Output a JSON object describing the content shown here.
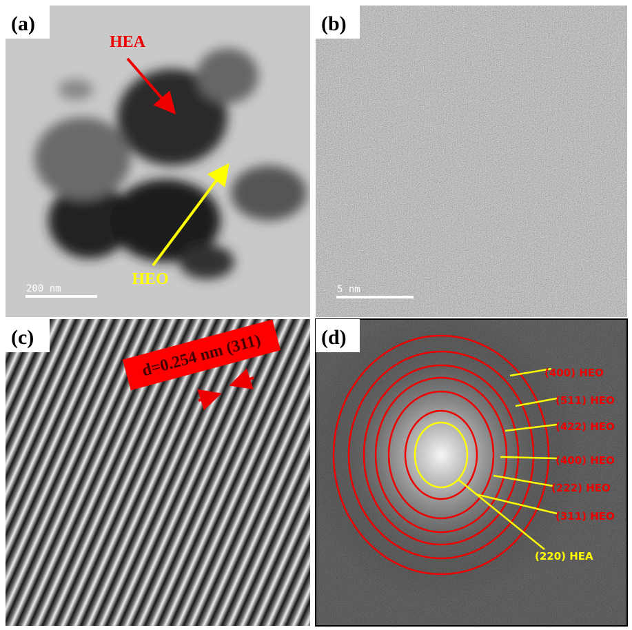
{
  "panels": [
    {
      "label": "(a)",
      "annotations": [
        "HEA",
        "HEO"
      ],
      "scale_bar": "200 nm"
    },
    {
      "label": "(b)",
      "scale_bar": "5 nm"
    },
    {
      "label": "(c)",
      "annotation": "d=0.254 nm (311)"
    },
    {
      "label": "(d)",
      "rings": [
        "(400) HEO",
        "(511) HEO",
        "(422) HEO",
        "(400) HEO",
        "(222) HEO",
        "(311) HEO",
        "(220) HEA"
      ]
    }
  ]
}
